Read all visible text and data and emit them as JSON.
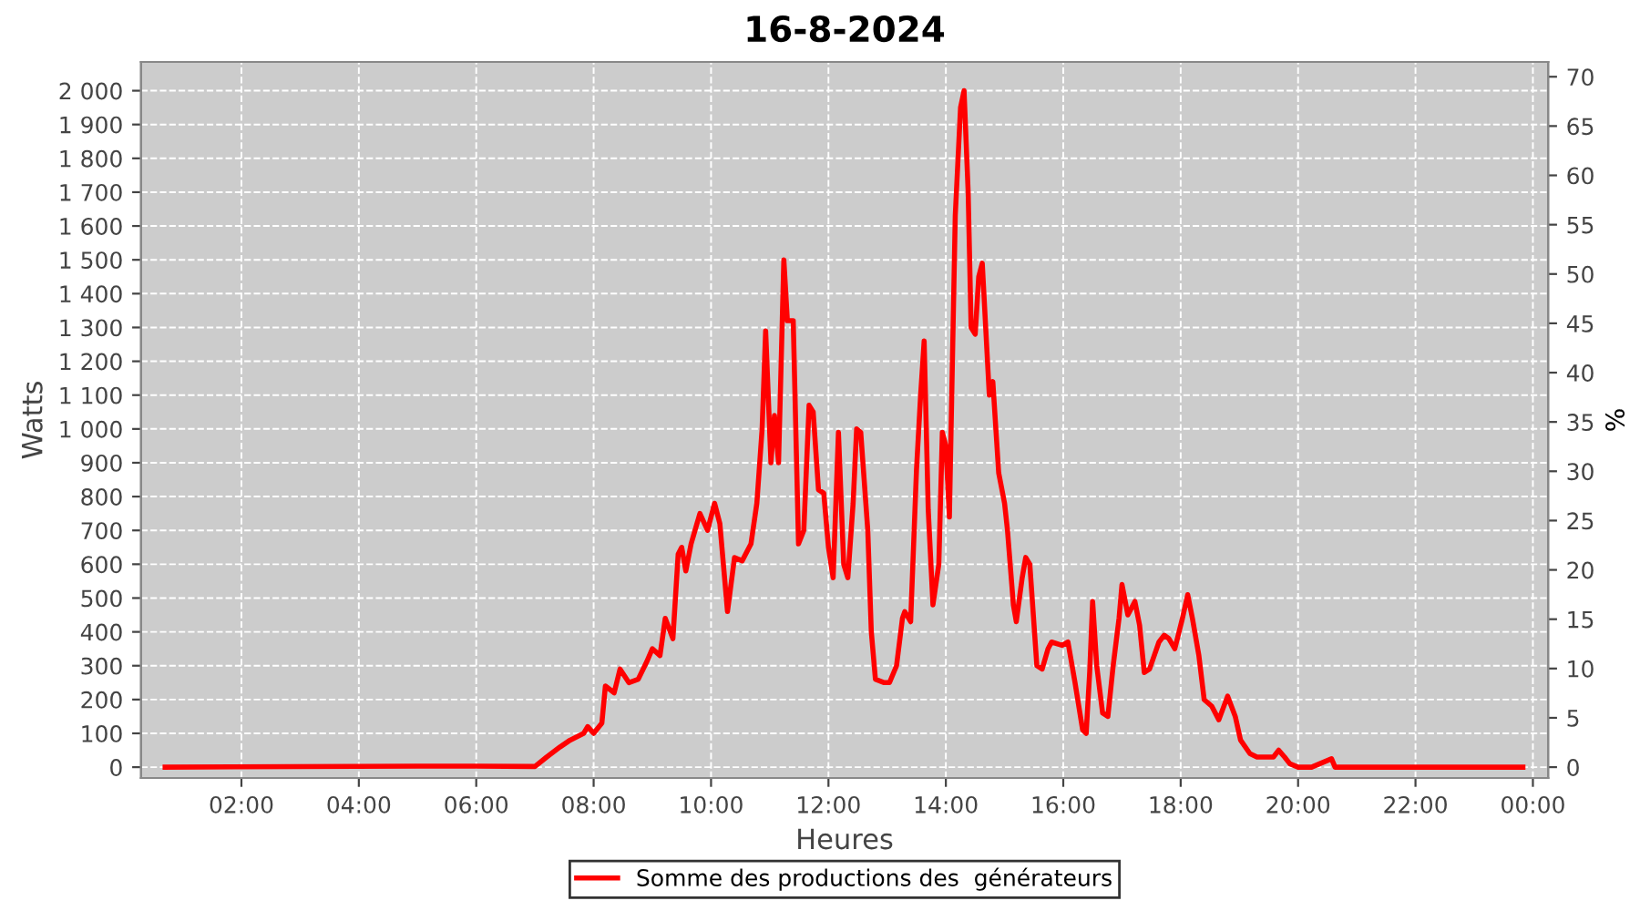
{
  "chart_data": {
    "type": "line",
    "title": "16-8-2024",
    "xlabel": "Heures",
    "ylabel": "Watts",
    "y2label": "%",
    "xlim": [
      0.29,
      24.26
    ],
    "xticks": [
      {
        "value": 2,
        "label": "02:00"
      },
      {
        "value": 4,
        "label": "04:00"
      },
      {
        "value": 6,
        "label": "06:00"
      },
      {
        "value": 8,
        "label": "08:00"
      },
      {
        "value": 10,
        "label": "10:00"
      },
      {
        "value": 12,
        "label": "12:00"
      },
      {
        "value": 14,
        "label": "14:00"
      },
      {
        "value": 16,
        "label": "16:00"
      },
      {
        "value": 18,
        "label": "18:00"
      },
      {
        "value": 20,
        "label": "20:00"
      },
      {
        "value": 22,
        "label": "22:00"
      },
      {
        "value": 24,
        "label": "00:00"
      }
    ],
    "ylim": [
      -32,
      2085
    ],
    "yticks": [
      0,
      100,
      200,
      300,
      400,
      500,
      600,
      700,
      800,
      900,
      {
        "value": 1000,
        "label": "1 000"
      },
      {
        "value": 1100,
        "label": "1 100"
      },
      {
        "value": 1200,
        "label": "1 200"
      },
      {
        "value": 1300,
        "label": "1 300"
      },
      {
        "value": 1400,
        "label": "1 400"
      },
      {
        "value": 1500,
        "label": "1 500"
      },
      {
        "value": 1600,
        "label": "1 600"
      },
      {
        "value": 1700,
        "label": "1 700"
      },
      {
        "value": 1800,
        "label": "1 800"
      },
      {
        "value": 1900,
        "label": "1 900"
      },
      {
        "value": 2000,
        "label": "2 000"
      }
    ],
    "y2lim": [
      -1.1,
      71.5
    ],
    "y2ticks": [
      0,
      5,
      10,
      15,
      20,
      25,
      30,
      35,
      40,
      45,
      50,
      55,
      60,
      65,
      70
    ],
    "grid": true,
    "legend": "bottom",
    "marker": "none",
    "line_style": "solid",
    "series": [
      {
        "name": "Somme des productions des  générateurs",
        "color": "#ff0000",
        "x": [
          0.7,
          5.0,
          6.0,
          7.0,
          7.2,
          7.43,
          7.6,
          7.83,
          7.9,
          8.0,
          8.14,
          8.2,
          8.35,
          8.45,
          8.6,
          8.76,
          8.9,
          9.0,
          9.13,
          9.22,
          9.35,
          9.44,
          9.5,
          9.57,
          9.66,
          9.81,
          9.94,
          10.06,
          10.15,
          10.28,
          10.4,
          10.53,
          10.68,
          10.78,
          10.87,
          10.93,
          11.02,
          11.08,
          11.15,
          11.24,
          11.3,
          11.4,
          11.49,
          11.58,
          11.67,
          11.74,
          11.83,
          11.92,
          12.0,
          12.08,
          12.17,
          12.26,
          12.33,
          12.42,
          12.48,
          12.55,
          12.67,
          12.73,
          12.8,
          12.95,
          13.04,
          13.16,
          13.26,
          13.3,
          13.4,
          13.5,
          13.57,
          13.63,
          13.7,
          13.78,
          13.88,
          13.94,
          14.0,
          14.06,
          14.16,
          14.25,
          14.31,
          14.38,
          14.43,
          14.5,
          14.56,
          14.62,
          14.74,
          14.8,
          14.9,
          15.0,
          15.05,
          15.15,
          15.2,
          15.3,
          15.36,
          15.43,
          15.55,
          15.64,
          15.74,
          15.8,
          15.98,
          16.08,
          16.2,
          16.33,
          16.39,
          16.45,
          16.5,
          16.57,
          16.67,
          16.76,
          16.85,
          16.95,
          17.0,
          17.1,
          17.22,
          17.3,
          17.38,
          17.47,
          17.63,
          17.72,
          17.8,
          17.9,
          18.03,
          18.12,
          18.2,
          18.31,
          18.4,
          18.53,
          18.65,
          18.8,
          18.93,
          19.02,
          19.18,
          19.3,
          19.58,
          19.67,
          19.77,
          19.86,
          20.0,
          20.23,
          20.57,
          20.63,
          23.83
        ],
        "values": [
          0,
          3,
          3,
          2,
          30,
          60,
          80,
          100,
          120,
          100,
          130,
          240,
          220,
          290,
          250,
          260,
          310,
          350,
          330,
          440,
          380,
          630,
          650,
          580,
          660,
          750,
          700,
          780,
          720,
          460,
          620,
          610,
          660,
          780,
          1000,
          1290,
          900,
          1040,
          900,
          1500,
          1320,
          1320,
          660,
          700,
          1070,
          1050,
          820,
          810,
          650,
          560,
          990,
          600,
          560,
          780,
          1000,
          990,
          700,
          400,
          260,
          250,
          250,
          300,
          440,
          460,
          430,
          880,
          1100,
          1260,
          760,
          480,
          600,
          990,
          950,
          740,
          1630,
          1950,
          2000,
          1700,
          1300,
          1280,
          1450,
          1490,
          1100,
          1140,
          870,
          780,
          700,
          480,
          430,
          560,
          620,
          600,
          300,
          290,
          350,
          370,
          360,
          370,
          250,
          110,
          100,
          280,
          490,
          300,
          160,
          150,
          300,
          440,
          540,
          450,
          490,
          420,
          280,
          290,
          370,
          390,
          380,
          350,
          440,
          510,
          440,
          330,
          200,
          180,
          140,
          210,
          150,
          80,
          40,
          30,
          30,
          50,
          30,
          10,
          0,
          0,
          25,
          0,
          0
        ]
      }
    ]
  }
}
